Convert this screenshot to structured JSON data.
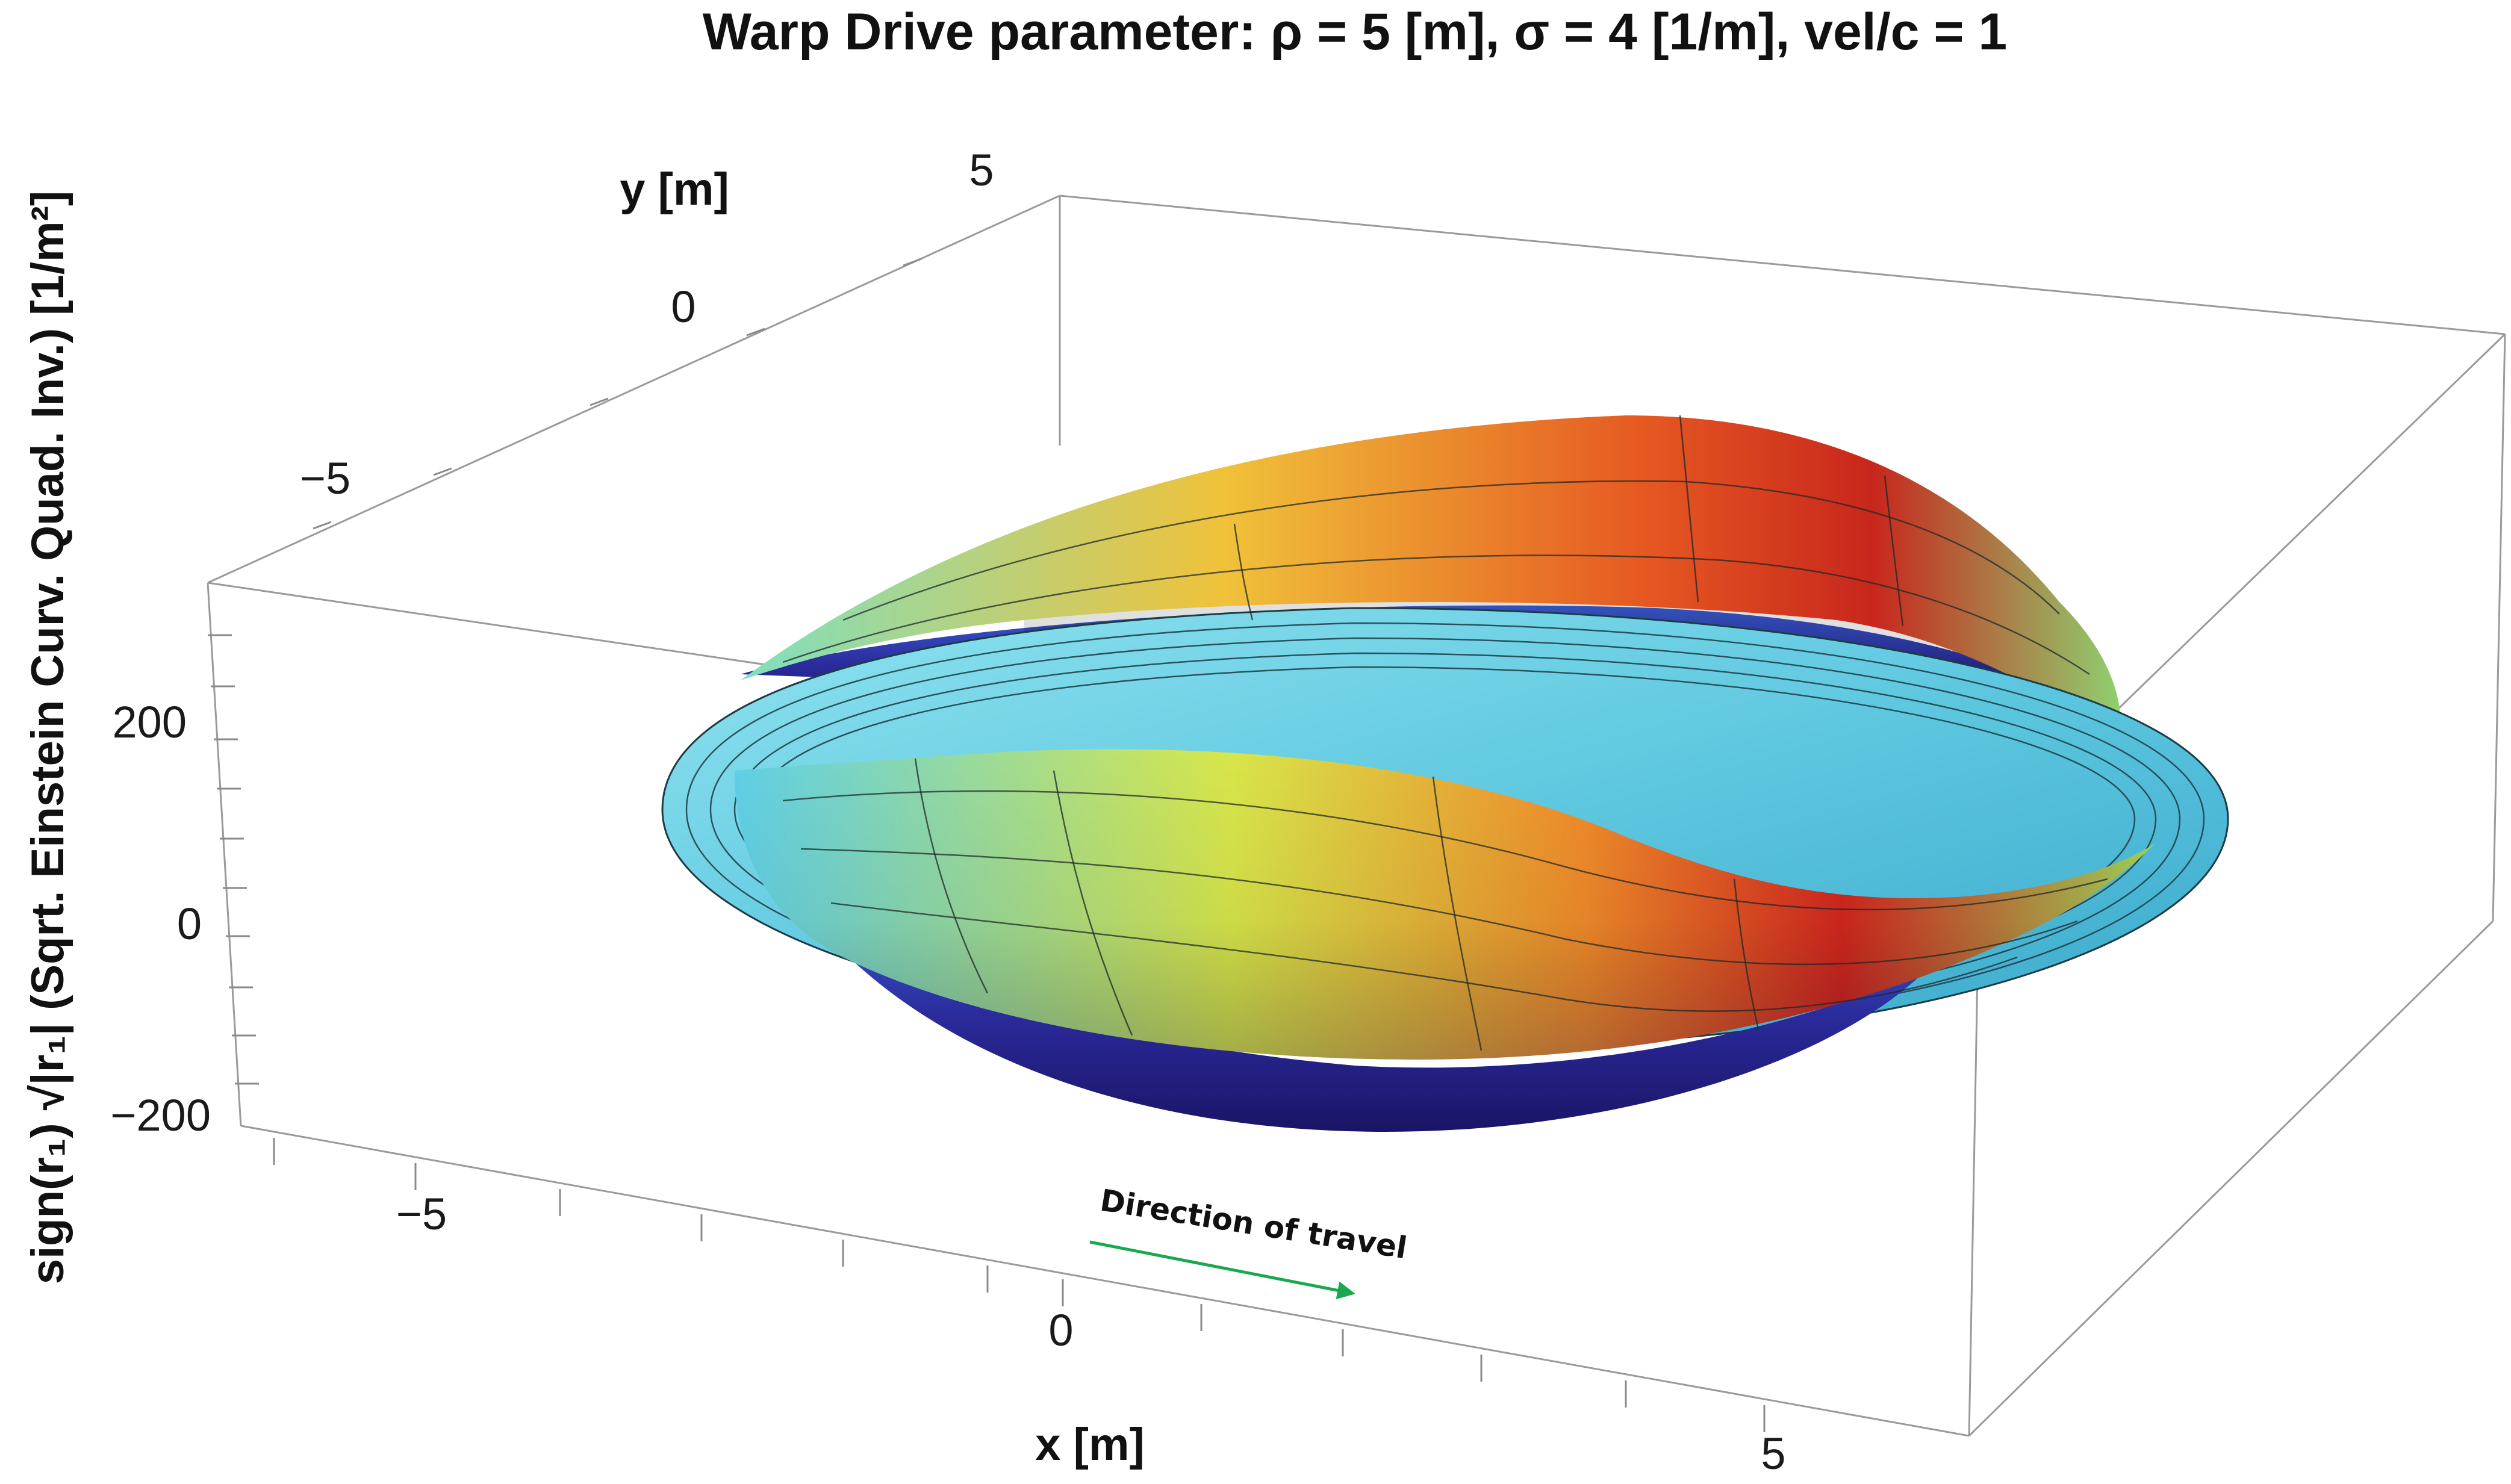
{
  "chart_data": {
    "type": "surface3d",
    "title": "Warp Drive parameter: ρ = 5 [m], σ = 4 [1/m], vel/c = 1",
    "xlabel": "x [m]",
    "ylabel": "y [m]",
    "zlabel": "sign(r₁) √|r₁| (Sqrt. Einstein Curv. Quad. Inv.) [1/m²]",
    "x_ticks": [
      "−5",
      "0",
      "5"
    ],
    "y_ticks": [
      "−5",
      "0",
      "5"
    ],
    "z_ticks": [
      "200",
      "0",
      "−200"
    ],
    "x_tick_values": [
      -5,
      0,
      5
    ],
    "y_tick_values": [
      -5,
      0,
      5
    ],
    "z_tick_values": [
      200,
      0,
      -200
    ],
    "xlim": [
      -8,
      8
    ],
    "ylim": [
      -8,
      8
    ],
    "zlim": [
      -300,
      300
    ],
    "parameters": {
      "rho": 5,
      "sigma": 4,
      "vel_over_c": 1
    },
    "colormap": [
      "#1a1466",
      "#3a5fd6",
      "#5fd0e8",
      "#d8e64a",
      "#f08a2a",
      "#d3261e"
    ],
    "annotation": {
      "text": "Direction of travel",
      "arrow_color": "#1aa84e"
    }
  }
}
